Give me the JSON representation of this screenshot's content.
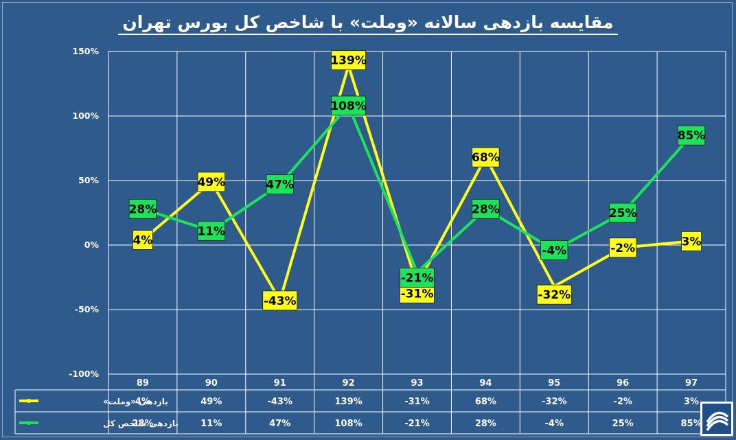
{
  "title": "مقایسه بازدهی سالانه «وملت» با شاخص کل بورس تهران",
  "chart_data": {
    "type": "line",
    "categories": [
      "89",
      "90",
      "91",
      "92",
      "93",
      "94",
      "95",
      "96",
      "97"
    ],
    "ylim": [
      -100,
      150
    ],
    "yticks": [
      -100,
      -50,
      0,
      50,
      100,
      150
    ],
    "ytick_labels": [
      "-100%",
      "-50%",
      "0%",
      "50%",
      "100%",
      "150%"
    ],
    "grid": true,
    "legend_placement": "data-table",
    "series": [
      {
        "name": "بازدهی «وملت»",
        "color": "#ffff1a",
        "values": [
          4,
          49,
          -43,
          139,
          -31,
          68,
          -32,
          -2,
          3
        ],
        "labels": [
          "4%",
          "49%",
          "-43%",
          "139%",
          "-31%",
          "68%",
          "-32%",
          "-2%",
          "3%"
        ]
      },
      {
        "name": "بازدهی شاخص کل",
        "color": "#1de35a",
        "values": [
          28,
          11,
          47,
          108,
          -21,
          28,
          -4,
          25,
          85
        ],
        "labels": [
          "28%",
          "11%",
          "47%",
          "108%",
          "-21%",
          "28%",
          "-4%",
          "25%",
          "85%"
        ]
      }
    ]
  },
  "colors": {
    "background": "#2f5b8c",
    "grid": "#ffffff",
    "text": "#ffffff"
  },
  "logo": {
    "icon": "broker-logo-icon"
  }
}
